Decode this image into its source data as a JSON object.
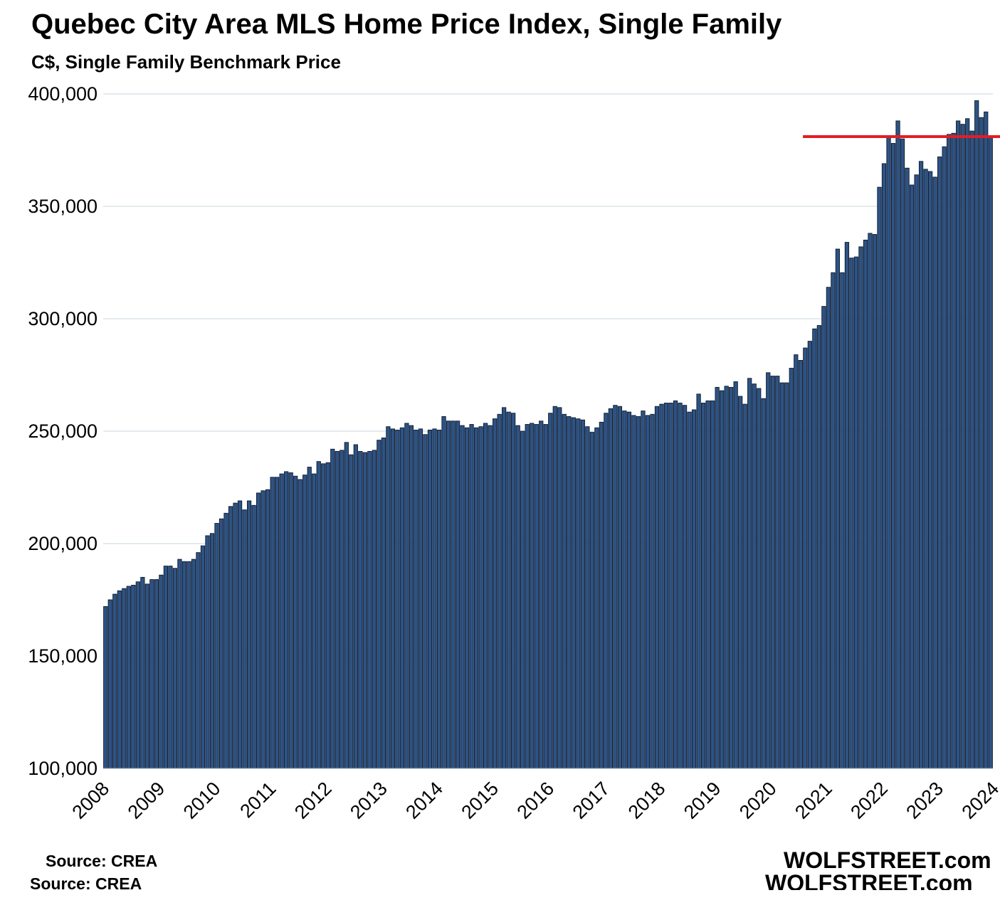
{
  "title": "Quebec City Area MLS Home Price Index, Single Family",
  "subtitle": "C$, Single Family Benchmark Price",
  "source_label": "Source: CREA",
  "source_label_duplicate": "Source: CREA",
  "brand": "WOLFSTREET.com",
  "brand_duplicate": "WOLFSTREET.com",
  "colors": {
    "bar_fill": "#2e5384",
    "bar_stroke": "#0b1a30",
    "reference_line": "#e31d24",
    "gridline": "#c9d5dc"
  },
  "chart_data": {
    "type": "bar",
    "title": "Quebec City Area MLS Home Price Index, Single Family",
    "subtitle": "C$, Single Family Benchmark Price",
    "xlabel": "",
    "ylabel": "",
    "ylim": [
      100000,
      400000
    ],
    "y_ticks": [
      100000,
      150000,
      200000,
      250000,
      300000,
      350000,
      400000
    ],
    "y_tick_labels": [
      "100,000",
      "150,000",
      "200,000",
      "250,000",
      "300,000",
      "350,000",
      "400,000"
    ],
    "x_tick_labels": [
      "2008",
      "2009",
      "2010",
      "2011",
      "2012",
      "2013",
      "2014",
      "2015",
      "2016",
      "2017",
      "2018",
      "2019",
      "2020",
      "2021",
      "2022",
      "2023",
      "2024"
    ],
    "frequency": "monthly",
    "start": "2008-01",
    "grid": true,
    "reference_line": {
      "value": 381000,
      "from": "2020-08",
      "to": "2024-03"
    },
    "series": [
      {
        "name": "Single Family Benchmark Price",
        "values": [
          172000,
          175000,
          177500,
          179000,
          180000,
          181000,
          181500,
          183000,
          185000,
          182000,
          184000,
          184000,
          186000,
          190000,
          190000,
          189000,
          193000,
          192000,
          192000,
          193000,
          196000,
          199000,
          203500,
          204500,
          209000,
          211000,
          213500,
          216500,
          218000,
          219000,
          215000,
          219000,
          217000,
          222500,
          223500,
          224000,
          229500,
          229500,
          231000,
          232000,
          231500,
          230000,
          228500,
          230500,
          234000,
          231000,
          236500,
          235500,
          236000,
          242000,
          241000,
          241500,
          245000,
          239500,
          244000,
          241000,
          240500,
          241000,
          241500,
          246000,
          247000,
          252000,
          251000,
          250500,
          251500,
          253500,
          252500,
          250500,
          251000,
          248500,
          250500,
          251000,
          250500,
          256500,
          254500,
          254500,
          254500,
          252500,
          251500,
          253000,
          251500,
          252000,
          253500,
          252500,
          255500,
          257500,
          260500,
          258500,
          258000,
          252500,
          250000,
          253000,
          253500,
          253000,
          254500,
          253000,
          258000,
          261000,
          260500,
          257500,
          256500,
          256000,
          255500,
          255000,
          252000,
          249500,
          251500,
          254000,
          258000,
          260000,
          261500,
          261000,
          259000,
          258500,
          257000,
          256500,
          259000,
          257000,
          257500,
          261000,
          262000,
          262500,
          262500,
          263500,
          262500,
          261500,
          258500,
          259500,
          266500,
          262500,
          263500,
          263500,
          269500,
          268000,
          270000,
          269500,
          272000,
          265500,
          262000,
          273500,
          271000,
          269000,
          264500,
          276000,
          274500,
          274500,
          271500,
          271500,
          278000,
          284000,
          281500,
          287000,
          290000,
          295500,
          297000,
          305500,
          314000,
          320500,
          331000,
          320500,
          334000,
          327000,
          327500,
          332000,
          335000,
          338000,
          337500,
          358500,
          369000,
          381000,
          378000,
          388000,
          380000,
          367000,
          359500,
          364000,
          370000,
          366500,
          365500,
          363000,
          372000,
          376500,
          382000,
          382500,
          388000,
          386500,
          389000,
          383500,
          397000,
          389500,
          392000,
          381000
        ]
      }
    ]
  }
}
